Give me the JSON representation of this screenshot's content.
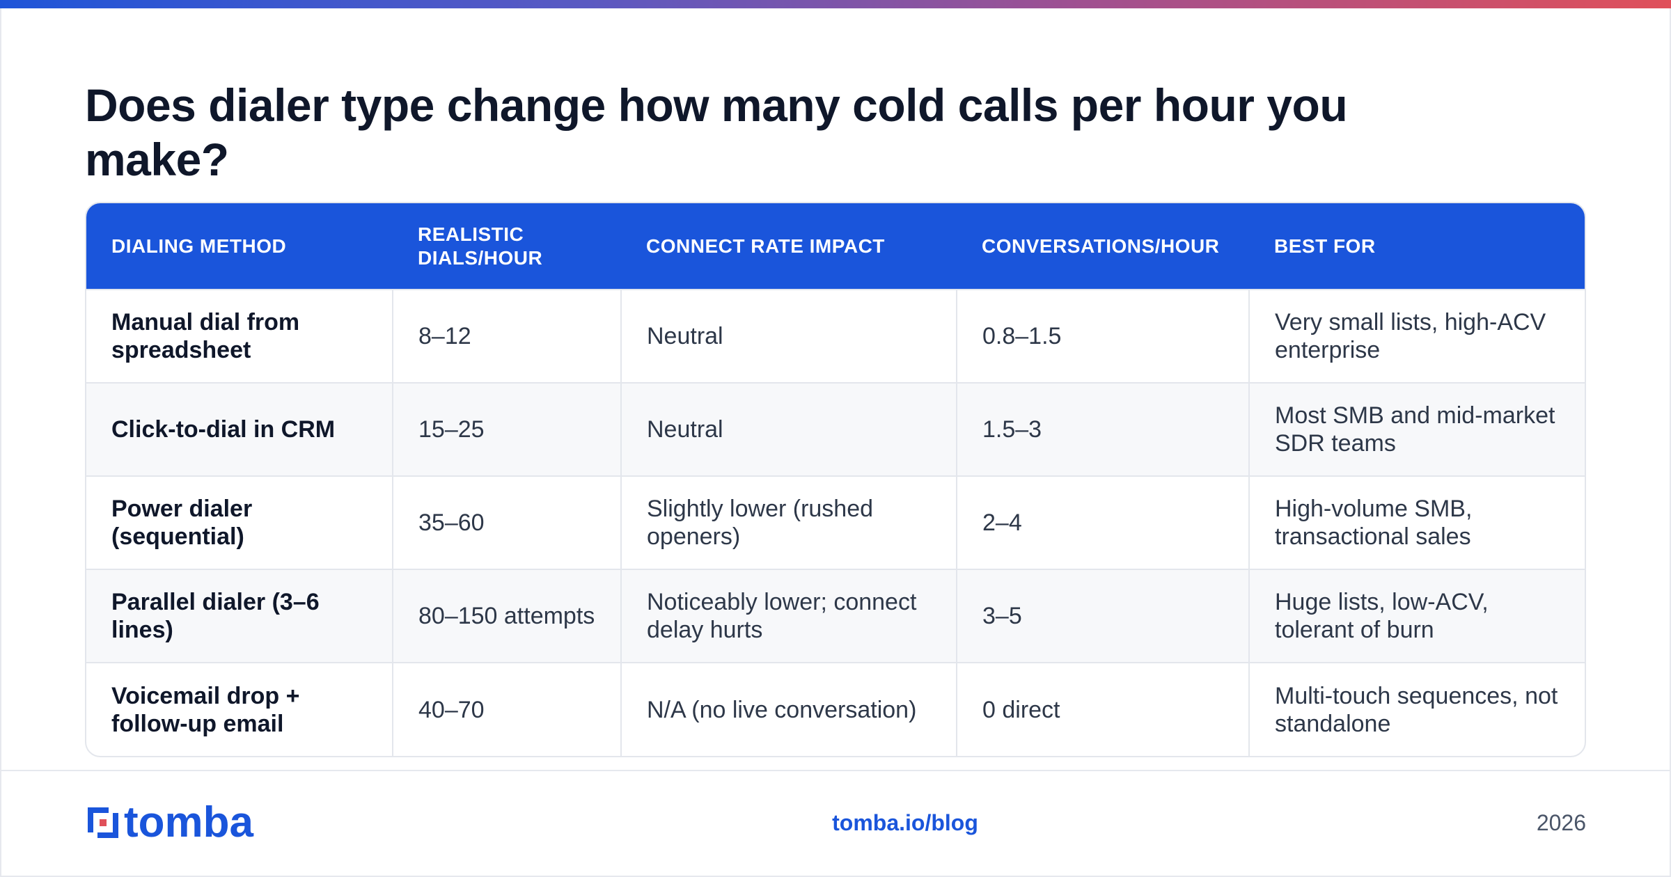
{
  "title": "Does dialer type change how many cold calls per hour you make?",
  "table": {
    "headers": [
      "DIALING METHOD",
      "REALISTIC DIALS/HOUR",
      "CONNECT RATE IMPACT",
      "CONVERSATIONS/HOUR",
      "BEST FOR"
    ],
    "rows": [
      [
        "Manual dial from spreadsheet",
        "8–12",
        "Neutral",
        "0.8–1.5",
        "Very small lists, high-ACV enterprise"
      ],
      [
        "Click-to-dial in CRM",
        "15–25",
        "Neutral",
        "1.5–3",
        "Most SMB and mid-market SDR teams"
      ],
      [
        "Power dialer (sequential)",
        "35–60",
        "Slightly lower (rushed openers)",
        "2–4",
        "High-volume SMB, transactional sales"
      ],
      [
        "Parallel dialer (3–6 lines)",
        "80–150 attempts",
        "Noticeably lower; connect delay hurts",
        "3–5",
        "Huge lists, low-ACV, tolerant of burn"
      ],
      [
        "Voicemail drop + follow-up email",
        "40–70",
        "N/A (no live conversation)",
        "0 direct",
        "Multi-touch sequences, not standalone"
      ]
    ]
  },
  "footer": {
    "logo_text": "tomba",
    "link": "tomba.io/blog",
    "year": "2026"
  },
  "colors": {
    "brand_blue": "#1a55db",
    "accent_red": "#e0505a",
    "title": "#0f172a"
  }
}
